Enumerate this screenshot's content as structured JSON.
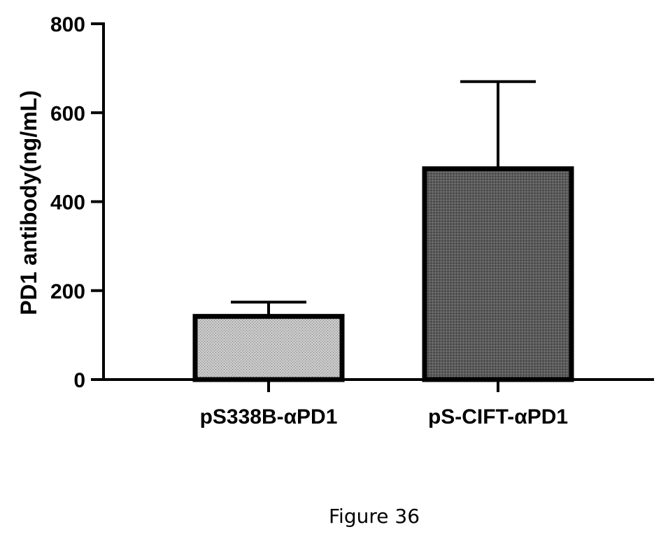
{
  "chart_data": {
    "type": "bar",
    "categories": [
      "pS338B-αPD1",
      "pS-CIFT-αPD1"
    ],
    "values": [
      142,
      474
    ],
    "error_upper": [
      174,
      670
    ],
    "ylabel": "PD1 antibody(ng/mL)",
    "xlabel": "",
    "ylim": [
      0,
      800
    ],
    "yticks": [
      0,
      200,
      400,
      600,
      800
    ],
    "bar_colors": [
      "#bdbdbd",
      "#555555"
    ],
    "grid": false
  },
  "caption": "Figure 36"
}
